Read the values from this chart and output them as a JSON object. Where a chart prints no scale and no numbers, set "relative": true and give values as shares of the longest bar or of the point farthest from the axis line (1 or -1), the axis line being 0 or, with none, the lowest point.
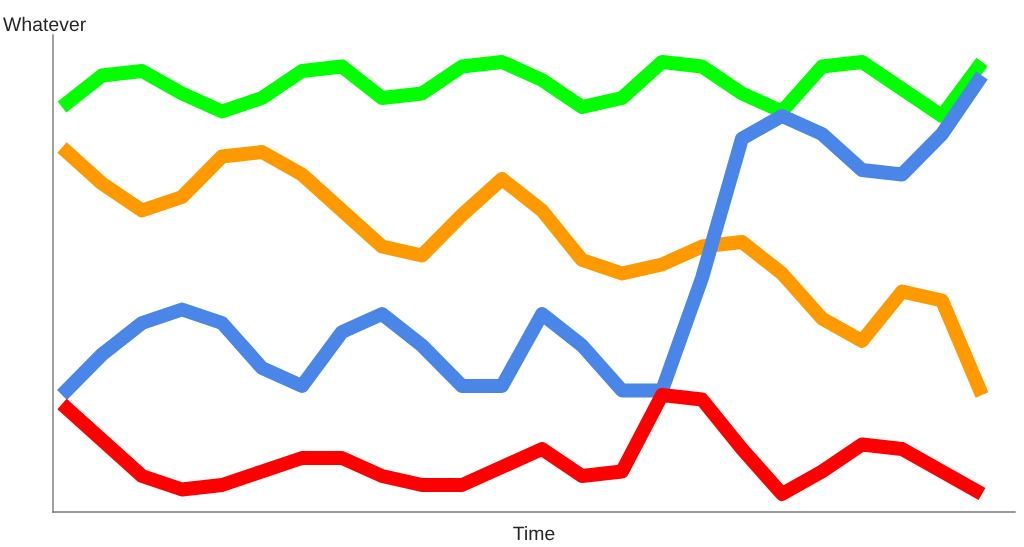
{
  "chart_data": {
    "type": "line",
    "relative": true,
    "xlabel": "Time",
    "ylabel": "Whatever",
    "grid": false,
    "legend": false,
    "marker": "none",
    "line_style": "solid",
    "categories": [
      null,
      null,
      null,
      null,
      null,
      null,
      null,
      null,
      null,
      null,
      null,
      null,
      null,
      null,
      null,
      null,
      null,
      null,
      null,
      null,
      null,
      null,
      null,
      null
    ],
    "series": [
      {
        "color": "#00ff00",
        "values": [
          0.9,
          0.97,
          0.98,
          0.93,
          0.89,
          0.92,
          0.98,
          0.99,
          0.92,
          0.93,
          0.99,
          1,
          0.96,
          0.9,
          0.92,
          1,
          0.99,
          0.93,
          0.89,
          0.99,
          1,
          0.94,
          0.88,
          1
        ]
      },
      {
        "color": "#ff9900",
        "values": [
          0.81,
          0.73,
          0.67,
          0.7,
          0.79,
          0.8,
          0.75,
          0.67,
          0.59,
          0.57,
          0.66,
          0.74,
          0.67,
          0.56,
          0.53,
          0.55,
          0.59,
          0.6,
          0.53,
          0.43,
          0.38,
          0.49,
          0.47,
          0.26
        ]
      },
      {
        "color": "#4a86e8",
        "values": [
          0.26,
          0.35,
          0.42,
          0.45,
          0.42,
          0.32,
          0.28,
          0.4,
          0.44,
          0.37,
          0.28,
          0.28,
          0.44,
          0.37,
          0.27,
          0.27,
          0.52,
          0.83,
          0.88,
          0.84,
          0.76,
          0.75,
          0.84,
          0.97
        ]
      },
      {
        "color": "#ff0000",
        "values": [
          0.24,
          0.16,
          0.08,
          0.05,
          0.06,
          0.09,
          0.12,
          0.12,
          0.08,
          0.06,
          0.06,
          0.1,
          0.14,
          0.08,
          0.09,
          0.26,
          0.25,
          0.14,
          0.04,
          0.09,
          0.15,
          0.14,
          0.09,
          0.04
        ]
      }
    ]
  }
}
